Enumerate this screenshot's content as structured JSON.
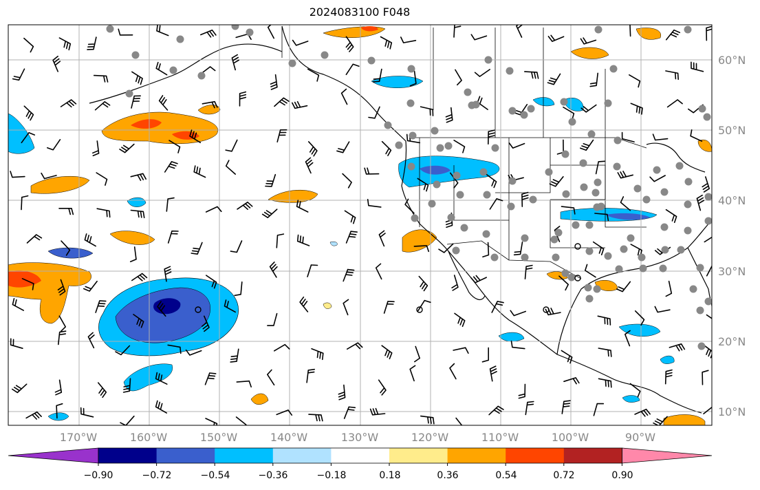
{
  "title": "2024083100 F048",
  "lat_labels": [
    "60°N",
    "50°N",
    "40°N",
    "30°N",
    "20°N",
    "10°N"
  ],
  "lon_labels": [
    "170°W",
    "160°W",
    "150°W",
    "140°W",
    "130°W",
    "120°W",
    "110°W",
    "100°W",
    "90°W"
  ],
  "colorbar": {
    "ticks": [
      "−0.90",
      "−0.72",
      "−0.54",
      "−0.36",
      "−0.18",
      "0.18",
      "0.36",
      "0.54",
      "0.72",
      "0.90"
    ],
    "colors": [
      "#9932cc",
      "#00008b",
      "#3a5fcd",
      "#00bfff",
      "#b0e2ff",
      "#ffffff",
      "#ffec8b",
      "#ffa500",
      "#ff4500",
      "#b22222",
      "#ff88aa"
    ]
  },
  "fill_colors": {
    "neg_light": "#b0e2ff",
    "neg_mid": "#00bfff",
    "neg_strong": "#3a5fcd",
    "neg_max": "#00008b",
    "pos_light": "#ffec8b",
    "pos_mid": "#ffa500",
    "pos_strong": "#ff4500",
    "pos_max": "#b22222"
  },
  "station_marker_color": "#888888",
  "grid": true
}
